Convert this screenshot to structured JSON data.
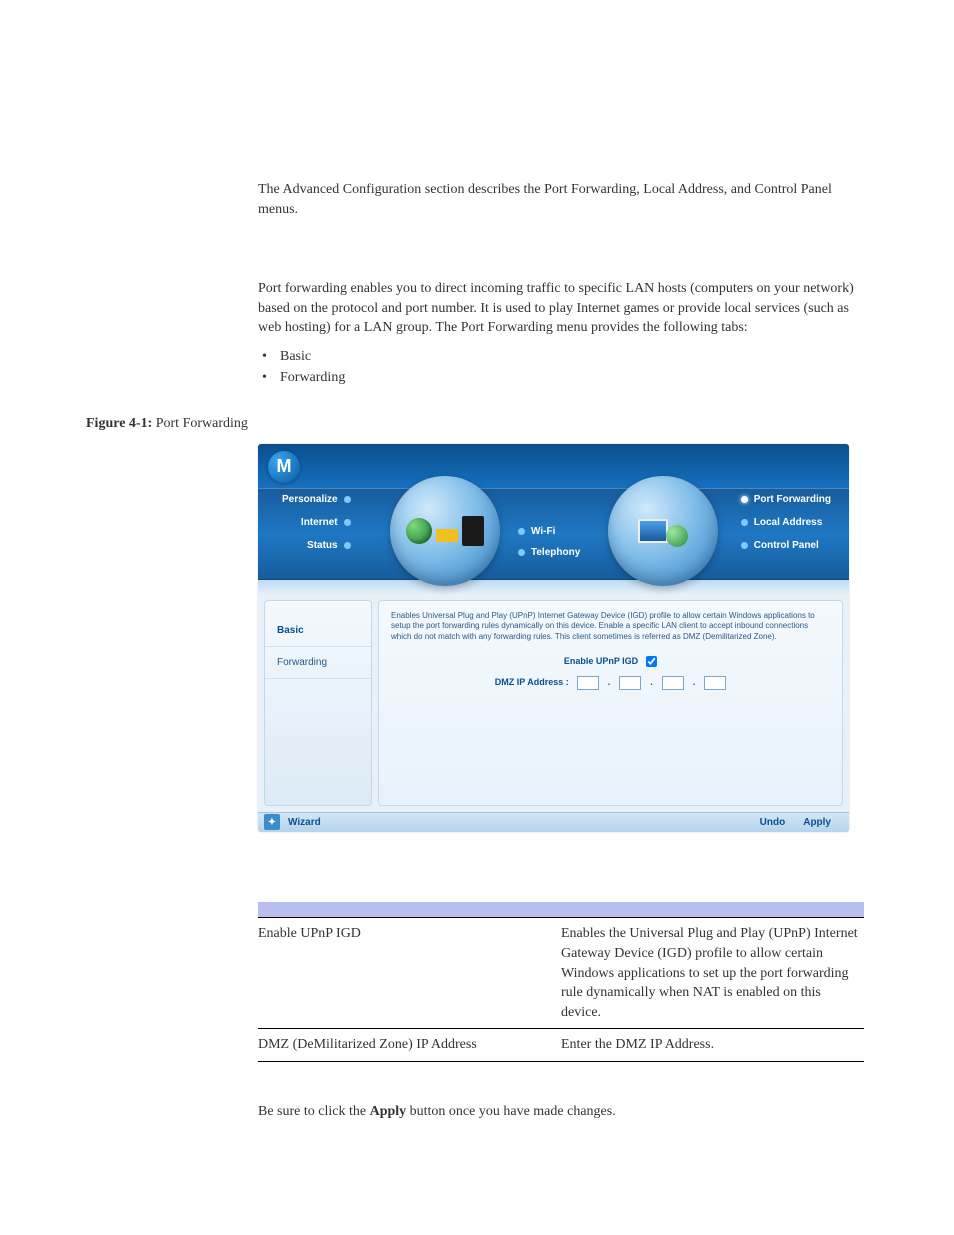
{
  "intro": "The Advanced Configuration section describes the Port Forwarding, Local Address, and Control Panel menus.",
  "port_para": "Port forwarding enables you to direct incoming traffic to specific LAN hosts (computers on your network) based on the protocol and port number. It is used to play Internet games or provide local services (such as web hosting) for a LAN group. The Port Forwarding menu provides the following tabs:",
  "bullets": [
    "Basic",
    "Forwarding"
  ],
  "figure_label_bold": "Figure 4-1:",
  "figure_label_text": " Port Forwarding",
  "router": {
    "logo_letter": "M",
    "left_nav": [
      "Personalize",
      "Internet",
      "Status"
    ],
    "center_nav": [
      "Wi-Fi",
      "Telephony"
    ],
    "right_nav": [
      {
        "label": "Port Forwarding",
        "active": true
      },
      {
        "label": "Local Address",
        "active": false
      },
      {
        "label": "Control Panel",
        "active": false
      }
    ],
    "side_tabs": [
      {
        "label": "Basic",
        "active": true
      },
      {
        "label": "Forwarding",
        "active": false
      }
    ],
    "panel_desc": "Enables Universal Plug and Play (UPnP) Internet Gateway Device (IGD) profile to allow certain Windows applications to setup the port forwarding rules dynamically on this device. Enable a specific LAN client to accept inbound connections which do not match with any forwarding rules. This client sometimes is referred as DMZ (Demilitarized Zone).",
    "enable_label": "Enable UPnP IGD",
    "dmz_label": "DMZ IP Address :",
    "wizard": "Wizard",
    "undo": "Undo",
    "apply": "Apply"
  },
  "table": {
    "rows": [
      {
        "field": "Enable UPnP IGD",
        "desc": "Enables the Universal Plug and Play (UPnP) Internet Gateway Device (IGD) profile to allow certain Windows applications to set up the port forwarding rule dynamically when NAT is enabled on this device."
      },
      {
        "field": "DMZ (DeMilitarized Zone) IP Address",
        "desc": "Enter the DMZ IP Address."
      }
    ]
  },
  "apply_note_pre": "Be sure to click the ",
  "apply_note_bold": "Apply",
  "apply_note_post": " button once you have made changes."
}
